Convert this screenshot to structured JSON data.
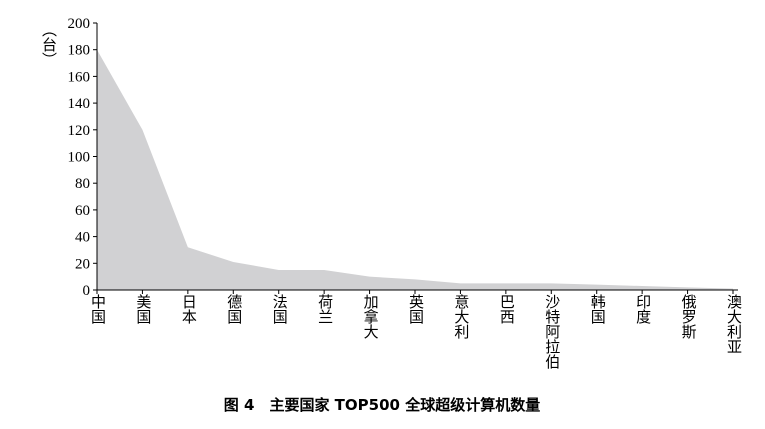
{
  "chart_data": {
    "type": "area",
    "caption": "图 4　主要国家 TOP500 全球超级计算机数量",
    "y_label": "（台）",
    "categories": [
      "中国",
      "美国",
      "日本",
      "德国",
      "法国",
      "荷兰",
      "加拿大",
      "英国",
      "意大利",
      "巴西",
      "沙特阿拉伯",
      "韩国",
      "印度",
      "俄罗斯",
      "澳大利亚"
    ],
    "values": [
      180,
      120,
      32,
      21,
      15,
      15,
      10,
      8,
      5,
      5,
      5,
      4,
      3,
      2,
      1
    ],
    "color": "#d1d1d3",
    "ylim": [
      0,
      200
    ],
    "yticks": [
      0,
      20,
      40,
      60,
      80,
      100,
      120,
      140,
      160,
      180,
      200
    ]
  }
}
